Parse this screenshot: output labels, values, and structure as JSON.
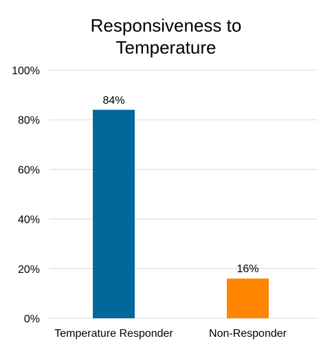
{
  "chart_data": {
    "type": "bar",
    "title_lines": [
      "Responsiveness to",
      "Temperature"
    ],
    "categories": [
      "Temperature Responder",
      "Non-Responder"
    ],
    "values": [
      84,
      16
    ],
    "value_labels": [
      "84%",
      "16%"
    ],
    "bar_colors": [
      "#02679A",
      "#FF8600"
    ],
    "ylim": [
      0,
      100
    ],
    "yticks": [
      0,
      20,
      40,
      60,
      80,
      100
    ],
    "ytick_labels": [
      "0%",
      "20%",
      "40%",
      "60%",
      "80%",
      "100%"
    ],
    "grid": true,
    "grid_color": "#D9D9D9",
    "xlabel": "",
    "ylabel": "",
    "legend": "none"
  }
}
